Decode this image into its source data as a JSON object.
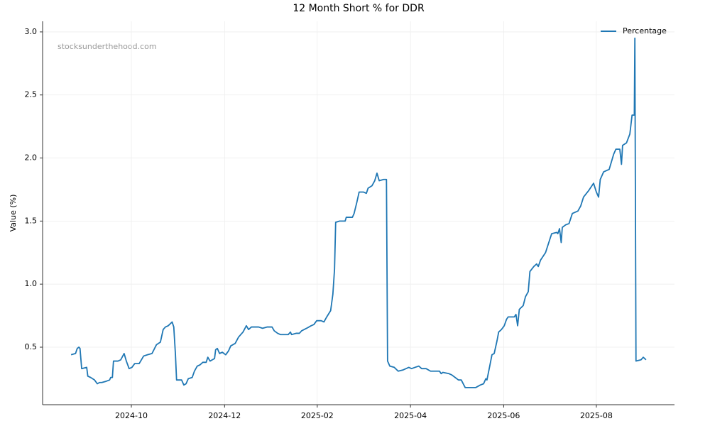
{
  "chart_data": {
    "type": "line",
    "title": "12 Month Short % for DDR",
    "ylabel": "Value (%)",
    "watermark": "stocksunderthehood.com",
    "x": [
      2024.642,
      2024.65,
      2024.653,
      2024.656,
      2024.658,
      2024.661,
      2024.67,
      2024.672,
      2024.677,
      2024.684,
      2024.689,
      2024.693,
      2024.697,
      2024.705,
      2024.711,
      2024.713,
      2024.716,
      2024.718,
      2024.726,
      2024.731,
      2024.737,
      2024.741,
      2024.746,
      2024.751,
      2024.756,
      2024.764,
      2024.772,
      2024.779,
      2024.787,
      2024.795,
      2024.802,
      2024.807,
      2024.811,
      2024.816,
      2024.823,
      2024.826,
      2024.829,
      2024.831,
      2024.84,
      2024.844,
      2024.848,
      2024.852,
      2024.859,
      2024.863,
      2024.868,
      2024.873,
      2024.878,
      2024.884,
      2024.887,
      2024.891,
      2024.899,
      2024.901,
      2024.904,
      2024.908,
      2024.913,
      2024.919,
      2024.924,
      2024.928,
      2024.936,
      2024.942,
      2024.95,
      2024.956,
      2024.96,
      2024.965,
      2024.97,
      2024.978,
      2024.985,
      2024.993,
      2025.002,
      2025.006,
      2025.012,
      2025.017,
      2025.025,
      2025.031,
      2025.035,
      2025.037,
      2025.045,
      2025.051,
      2025.055,
      2025.064,
      2025.072,
      2025.077,
      2025.082,
      2025.09,
      2025.095,
      2025.1,
      2025.107,
      2025.111,
      2025.114,
      2025.116,
      2025.123,
      2025.133,
      2025.135,
      2025.146,
      2025.149,
      2025.154,
      2025.158,
      2025.166,
      2025.171,
      2025.174,
      2025.181,
      2025.186,
      2025.19,
      2025.194,
      2025.202,
      2025.207,
      2025.209,
      2025.213,
      2025.221,
      2025.228,
      2025.237,
      2025.242,
      2025.247,
      2025.252,
      2025.258,
      2025.265,
      2025.27,
      2025.278,
      2025.286,
      2025.293,
      2025.302,
      2025.305,
      2025.308,
      2025.319,
      2025.324,
      2025.33,
      2025.336,
      2025.341,
      2025.348,
      2025.357,
      2025.367,
      2025.375,
      2025.381,
      2025.385,
      2025.387,
      2025.392,
      2025.396,
      2025.4,
      2025.405,
      2025.408,
      2025.413,
      2025.418,
      2025.422,
      2025.425,
      2025.436,
      2025.439,
      2025.442,
      2025.445,
      2025.452,
      2025.456,
      2025.461,
      2025.464,
      2025.471,
      2025.476,
      2025.479,
      2025.483,
      2025.492,
      2025.5,
      2025.503,
      2025.512,
      2025.514,
      2025.517,
      2025.52,
      2025.522,
      2025.528,
      2025.534,
      2025.54,
      2025.55,
      2025.555,
      2025.56,
      2025.569,
      2025.578,
      2025.583,
      2025.587,
      2025.59,
      2025.596,
      2025.606,
      2025.61,
      2025.614,
      2025.618,
      2025.625,
      2025.628,
      2025.63,
      2025.637,
      2025.643,
      2025.647,
      2025.651,
      2025.652,
      2025.654,
      2025.663,
      2025.667,
      2025.672
    ],
    "series": [
      {
        "name": "Percentage",
        "color": "#1f77b4",
        "values": [
          0.44,
          0.45,
          0.49,
          0.5,
          0.49,
          0.33,
          0.34,
          0.27,
          0.26,
          0.24,
          0.21,
          0.22,
          0.22,
          0.23,
          0.24,
          0.26,
          0.26,
          0.39,
          0.39,
          0.4,
          0.45,
          0.39,
          0.33,
          0.34,
          0.37,
          0.37,
          0.43,
          0.44,
          0.45,
          0.52,
          0.54,
          0.64,
          0.66,
          0.67,
          0.7,
          0.66,
          0.44,
          0.24,
          0.24,
          0.2,
          0.21,
          0.25,
          0.26,
          0.31,
          0.35,
          0.36,
          0.38,
          0.38,
          0.42,
          0.39,
          0.41,
          0.48,
          0.49,
          0.45,
          0.46,
          0.44,
          0.47,
          0.51,
          0.53,
          0.58,
          0.62,
          0.67,
          0.64,
          0.66,
          0.66,
          0.66,
          0.65,
          0.66,
          0.66,
          0.63,
          0.61,
          0.6,
          0.6,
          0.6,
          0.62,
          0.6,
          0.61,
          0.61,
          0.63,
          0.65,
          0.67,
          0.68,
          0.71,
          0.71,
          0.7,
          0.74,
          0.79,
          0.92,
          1.12,
          1.49,
          1.5,
          1.5,
          1.53,
          1.53,
          1.56,
          1.65,
          1.73,
          1.73,
          1.72,
          1.76,
          1.78,
          1.82,
          1.88,
          1.82,
          1.83,
          1.83,
          0.39,
          0.35,
          0.34,
          0.31,
          0.32,
          0.33,
          0.34,
          0.33,
          0.34,
          0.35,
          0.33,
          0.33,
          0.31,
          0.31,
          0.31,
          0.29,
          0.3,
          0.29,
          0.28,
          0.26,
          0.24,
          0.24,
          0.18,
          0.18,
          0.18,
          0.2,
          0.21,
          0.25,
          0.24,
          0.35,
          0.44,
          0.45,
          0.55,
          0.62,
          0.64,
          0.67,
          0.72,
          0.74,
          0.74,
          0.76,
          0.67,
          0.8,
          0.83,
          0.9,
          0.94,
          1.1,
          1.14,
          1.16,
          1.14,
          1.19,
          1.25,
          1.36,
          1.4,
          1.41,
          1.4,
          1.44,
          1.33,
          1.45,
          1.47,
          1.48,
          1.56,
          1.58,
          1.62,
          1.69,
          1.74,
          1.8,
          1.73,
          1.69,
          1.83,
          1.89,
          1.91,
          1.97,
          2.03,
          2.07,
          2.07,
          1.95,
          2.1,
          2.12,
          2.19,
          2.34,
          2.34,
          2.95,
          0.39,
          0.4,
          0.42,
          0.4
        ]
      }
    ],
    "xlim": [
      2024.591,
      2025.723
    ],
    "xticks": [
      {
        "value": 2024.75,
        "label": "2024-10"
      },
      {
        "value": 2024.917,
        "label": "2024-12"
      },
      {
        "value": 2025.083,
        "label": "2025-02"
      },
      {
        "value": 2025.25,
        "label": "2025-04"
      },
      {
        "value": 2025.417,
        "label": "2025-06"
      },
      {
        "value": 2025.583,
        "label": "2025-08"
      }
    ],
    "ylim": [
      0.044,
      3.084
    ],
    "yticks": [
      0.5,
      {
        "value": 1,
        "label": "1.0"
      },
      1.5,
      {
        "value": 2,
        "label": "2.0"
      },
      2.5,
      {
        "value": 3,
        "label": "3.0"
      }
    ],
    "grid": true,
    "legend": "upper right"
  }
}
